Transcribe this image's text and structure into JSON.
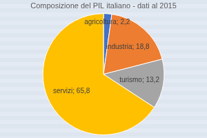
{
  "chart_data": {
    "type": "pie",
    "title": "Composizione del PIL italiano - dati al 2015",
    "categories": [
      "agricoltura",
      "industria",
      "turismo",
      "servizi"
    ],
    "values": [
      2.2,
      18.8,
      13.2,
      65.8
    ],
    "value_labels": [
      "agricoltura; 2,2",
      "industria; 18,8",
      "turismo; 13,2",
      "servizi; 65,8"
    ],
    "colors": [
      "#4472c4",
      "#ed7d31",
      "#a5a5a5",
      "#ffc000"
    ],
    "data_labels": true
  }
}
